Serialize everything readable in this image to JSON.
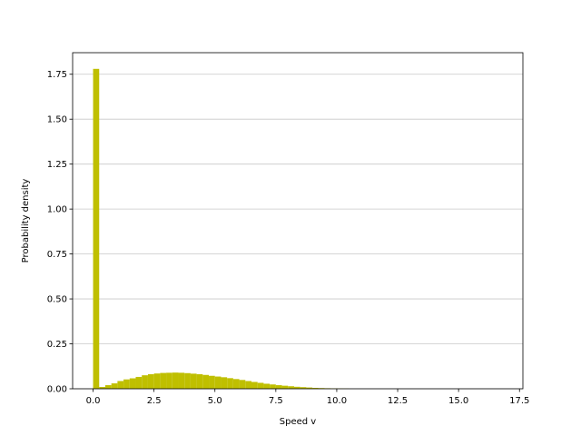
{
  "chart_data": {
    "type": "bar",
    "subtype": "histogram",
    "title": "",
    "xlabel": "Speed v",
    "ylabel": "Probability density",
    "xlim": [
      -0.84,
      17.64
    ],
    "ylim": [
      0,
      1.87
    ],
    "xticks": [
      0.0,
      2.5,
      5.0,
      7.5,
      10.0,
      12.5,
      15.0,
      17.5
    ],
    "xtick_labels": [
      "0.0",
      "2.5",
      "5.0",
      "7.5",
      "10.0",
      "12.5",
      "15.0",
      "17.5"
    ],
    "yticks": [
      0.0,
      0.25,
      0.5,
      0.75,
      1.0,
      1.25,
      1.5,
      1.75
    ],
    "ytick_labels": [
      "0.00",
      "0.25",
      "0.50",
      "0.75",
      "1.00",
      "1.25",
      "1.50",
      "1.75"
    ],
    "grid": "y-axis only",
    "bar_color": "#bfbf00",
    "bin_width": 0.25,
    "bins_start": [
      0.0,
      0.25,
      0.5,
      0.75,
      1.0,
      1.25,
      1.5,
      1.75,
      2.0,
      2.25,
      2.5,
      2.75,
      3.0,
      3.25,
      3.5,
      3.75,
      4.0,
      4.25,
      4.5,
      4.75,
      5.0,
      5.25,
      5.5,
      5.75,
      6.0,
      6.25,
      6.5,
      6.75,
      7.0,
      7.25,
      7.5,
      7.75,
      8.0,
      8.25,
      8.5,
      8.75,
      9.0,
      9.25,
      9.5,
      9.75,
      10.0,
      10.25
    ],
    "values": [
      1.78,
      0.01,
      0.02,
      0.03,
      0.043,
      0.052,
      0.058,
      0.066,
      0.075,
      0.081,
      0.085,
      0.088,
      0.089,
      0.09,
      0.089,
      0.087,
      0.084,
      0.081,
      0.077,
      0.072,
      0.068,
      0.064,
      0.059,
      0.054,
      0.049,
      0.043,
      0.038,
      0.033,
      0.028,
      0.024,
      0.02,
      0.017,
      0.014,
      0.011,
      0.009,
      0.007,
      0.005,
      0.004,
      0.003,
      0.002,
      0.0015,
      0.001
    ]
  },
  "colors": {
    "bar": "#bfbf00",
    "grid": "#c8c8c8",
    "axis": "#000000",
    "background": "#ffffff"
  }
}
